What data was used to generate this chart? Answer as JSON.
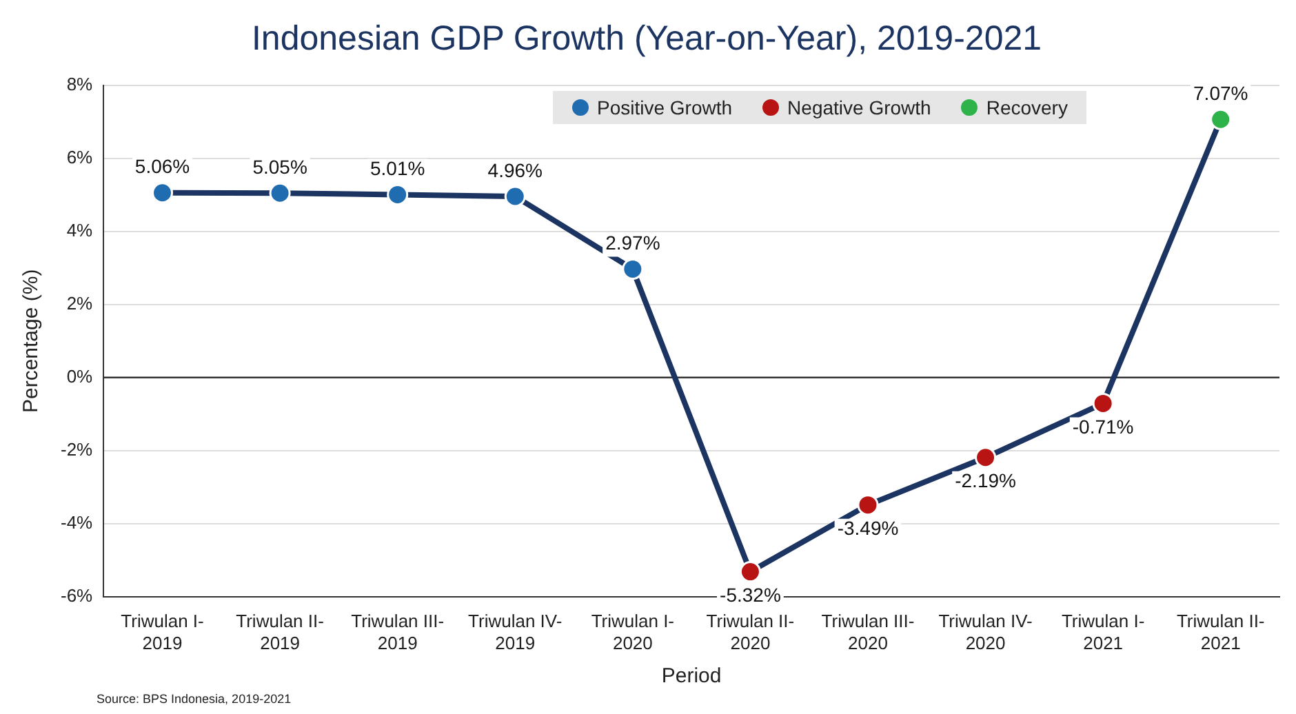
{
  "chart_data": {
    "type": "line",
    "title": "Indonesian GDP Growth (Year-on-Year), 2019-2021",
    "xlabel": "Period",
    "ylabel": "Percentage (%)",
    "categories": [
      "Triwulan I-\n2019",
      "Triwulan II-\n2019",
      "Triwulan III-\n2019",
      "Triwulan IV-\n2019",
      "Triwulan I-\n2020",
      "Triwulan II-\n2020",
      "Triwulan III-\n2020",
      "Triwulan IV-\n2020",
      "Triwulan I-\n2021",
      "Triwulan II-\n2021"
    ],
    "series": [
      {
        "color": "#1c3461",
        "values": [
          5.06,
          5.05,
          5.01,
          4.96,
          2.97,
          -5.32,
          -3.49,
          -2.19,
          -0.71,
          7.07
        ],
        "marker": "none"
      },
      {
        "type": "scatter",
        "name": "Positive Growth",
        "color": "#1f6cb0",
        "values": [
          5.06,
          5.05,
          5.01,
          4.96,
          2.97,
          null,
          null,
          null,
          null,
          null
        ],
        "value_labels": [
          "5.06%",
          "5.05%",
          "5.01%",
          "4.96%",
          "2.97%",
          null,
          null,
          null,
          null,
          null
        ]
      },
      {
        "type": "scatter",
        "name": "Negative Growth",
        "color": "#b81414",
        "values": [
          null,
          null,
          null,
          null,
          null,
          -5.32,
          -3.49,
          -2.19,
          -0.71,
          null
        ],
        "value_labels": [
          null,
          null,
          null,
          null,
          null,
          "-5.32%",
          "-3.49%",
          "-2.19%",
          "-0.71%",
          null
        ]
      },
      {
        "type": "scatter",
        "name": "Recovery",
        "color": "#2db34a",
        "values": [
          null,
          null,
          null,
          null,
          null,
          null,
          null,
          null,
          null,
          7.07
        ],
        "value_labels": [
          null,
          null,
          null,
          null,
          null,
          null,
          null,
          null,
          null,
          "7.07%"
        ]
      }
    ],
    "ylim": [
      -6,
      8
    ],
    "yticks": [
      {
        "value": -6,
        "label": "-6%"
      },
      {
        "value": -4,
        "label": "-4%"
      },
      {
        "value": -2,
        "label": "-2%"
      },
      {
        "value": 0,
        "label": "0%"
      },
      {
        "value": 2,
        "label": "2%"
      },
      {
        "value": 4,
        "label": "4%"
      },
      {
        "value": 6,
        "label": "6%"
      },
      {
        "value": 8,
        "label": "8%"
      }
    ],
    "grid": "y",
    "legend": "top right",
    "marker": "circle",
    "line_style": "solid",
    "ref_lines": [
      {
        "axis": "y",
        "value": 0,
        "color": "#333333"
      }
    ],
    "annotations": [
      "Source: BPS Indonesia, 2019-2021"
    ]
  }
}
